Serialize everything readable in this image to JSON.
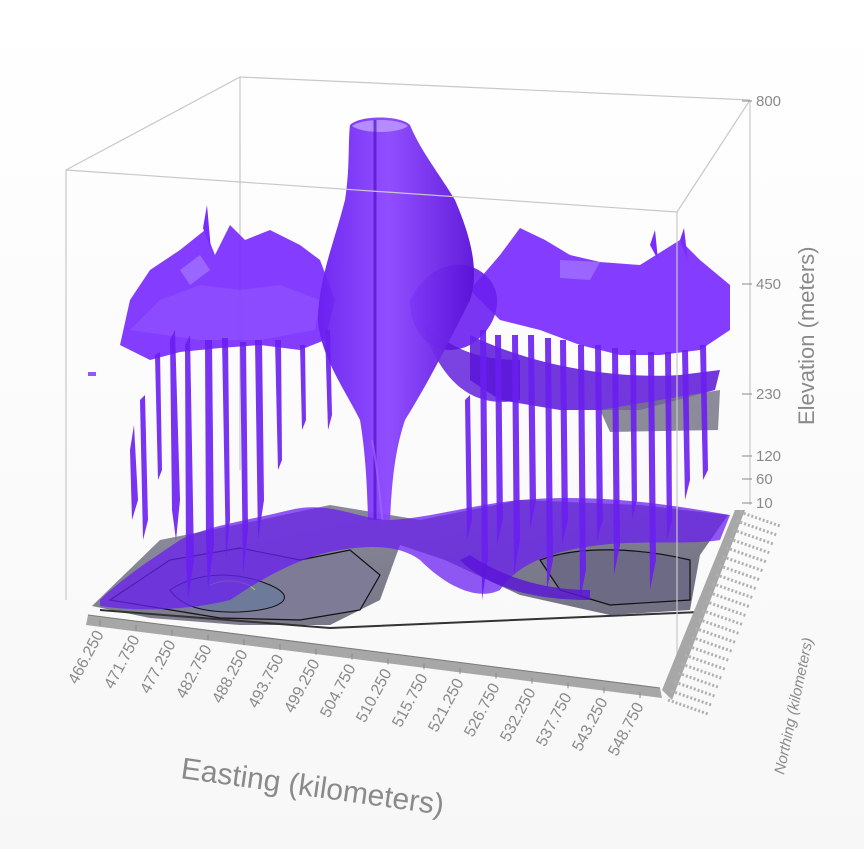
{
  "chart_data": {
    "type": "surface-3d",
    "xlabel": "Easting (kilometers)",
    "ylabel": "Northing (kilometers)",
    "zlabel": "Elevation (meters)",
    "x_ticks": [
      "466.250",
      "471.750",
      "477.250",
      "482.750",
      "488.250",
      "493.750",
      "499.250",
      "504.750",
      "510.250",
      "515.750",
      "521.250",
      "526.750",
      "532.250",
      "537.750",
      "543.250",
      "548.750"
    ],
    "z_ticks": [
      10,
      60,
      120,
      230,
      450,
      800
    ],
    "zlim": [
      0,
      800
    ],
    "grid": false,
    "colors": {
      "surface": "#7a2cff",
      "surface_dark": "#4a10b8",
      "surface_light": "#9c5cff",
      "contour_base": "#6b6b80",
      "box": "#c8c8c8",
      "axis_text": "#8a8a8a"
    }
  }
}
